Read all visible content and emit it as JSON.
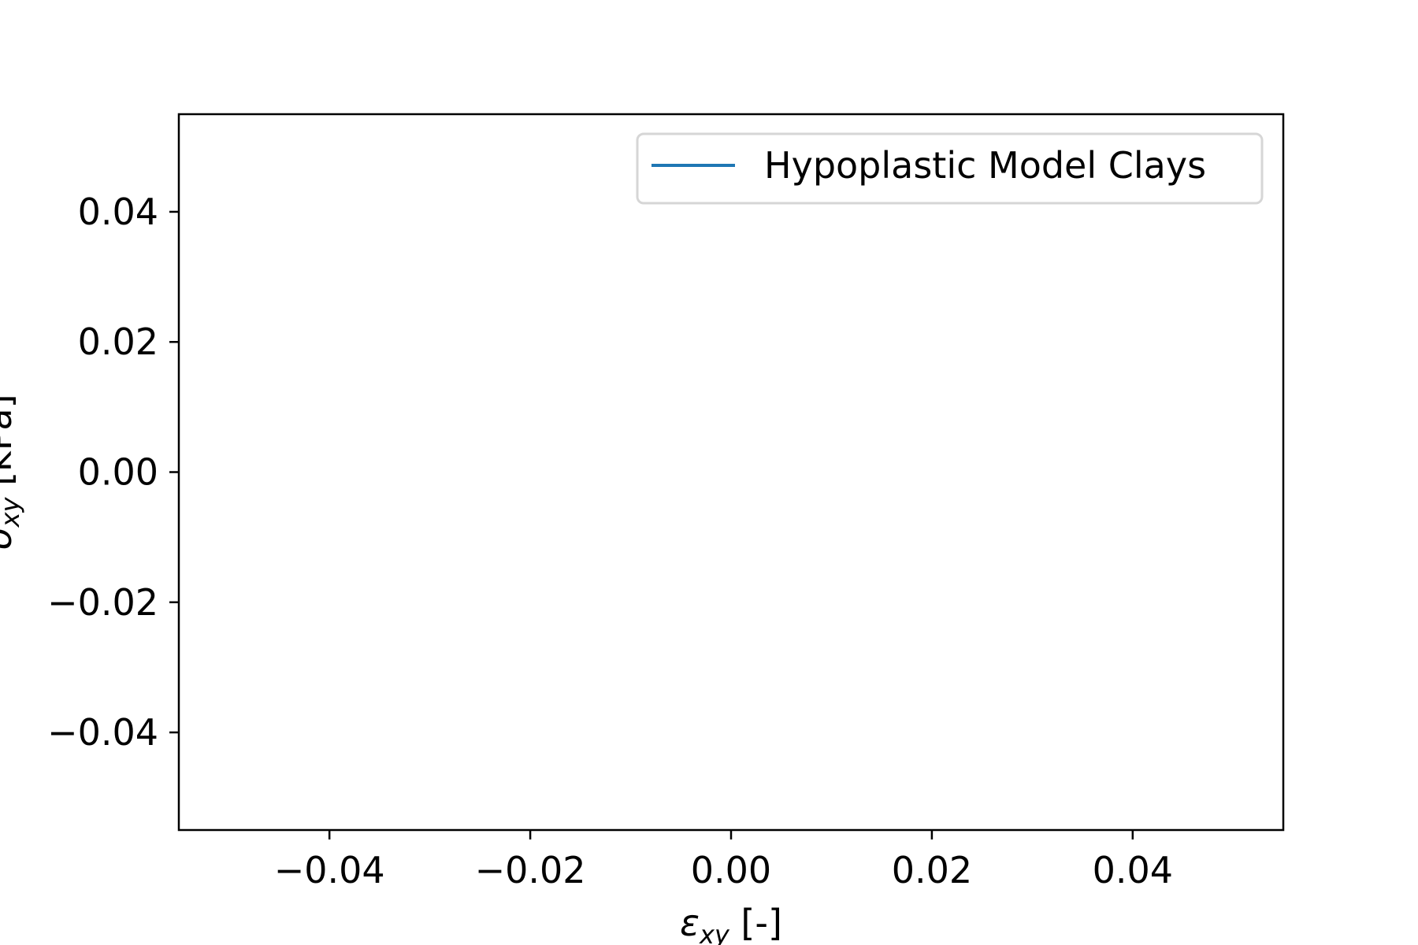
{
  "chart_data": {
    "type": "line",
    "title": "",
    "xlabel": "εxy [-]",
    "xlabel_parts": {
      "symbol": "ε",
      "subscript": "xy",
      "unit": " [-]"
    },
    "ylabel": "σxy [kPa]",
    "ylabel_parts": {
      "symbol": "σ",
      "subscript": "xy",
      "unit": " [kPa]"
    },
    "xlim": [
      -0.055,
      0.055
    ],
    "ylim": [
      -0.055,
      0.055
    ],
    "xticks": [
      -0.04,
      -0.02,
      0.0,
      0.02,
      0.04
    ],
    "xtick_labels": [
      "−0.04",
      "−0.02",
      "0.00",
      "0.02",
      "0.04"
    ],
    "yticks": [
      0.04,
      0.02,
      0.0,
      -0.02,
      -0.04
    ],
    "ytick_labels": [
      "0.04",
      "0.02",
      "0.00",
      "−0.02",
      "−0.04"
    ],
    "grid": false,
    "legend_position": "top-right",
    "series": [
      {
        "name": "Hypoplastic Model Clays",
        "color": "#1f77b4",
        "x": [],
        "y": []
      }
    ]
  }
}
